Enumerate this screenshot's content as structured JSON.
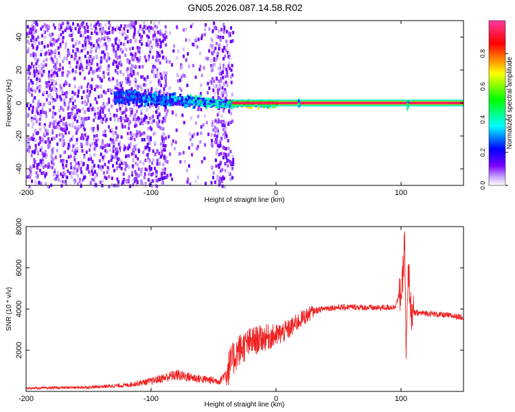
{
  "title": "GN05.2026.087.14.58.R02",
  "chart_data": [
    {
      "type": "heatmap",
      "xlabel": "Height of straight line (km)",
      "ylabel": "Frequency (Hz)",
      "xlim": [
        -200,
        150
      ],
      "ylim": [
        -50,
        50
      ],
      "x_ticks": [
        "-200",
        "-100",
        "0",
        "100"
      ],
      "y_ticks": [
        "40",
        "20",
        "0",
        "-20",
        "-40"
      ],
      "description_of_features": {
        "noise_region_x": [
          -200,
          -35
        ],
        "sparse_gap_x": [
          -88,
          -53
        ],
        "cluster_x": [
          -130,
          -35
        ],
        "cluster_center_freq": 5,
        "steady_line_freq": 0,
        "steady_line_x": [
          -35,
          150
        ],
        "spike_x": [
          18,
          105
        ]
      },
      "colorbar": {
        "label": "Normalized spectral amplitude",
        "range": [
          0,
          1
        ],
        "ticks": [
          "0.0",
          "0.2",
          "0.4",
          "0.6",
          "0.8"
        ],
        "colors": [
          "#ffffff",
          "#7a00ff",
          "#0000ff",
          "#00ffff",
          "#00ff00",
          "#ffff00",
          "#ff0000",
          "#ff3aa0"
        ]
      }
    },
    {
      "type": "line",
      "xlabel": "Height of straight line (km)",
      "ylabel": "SNR (10 * v/v)",
      "xlim": [
        -200,
        150
      ],
      "ylim": [
        0,
        8000
      ],
      "x_ticks": [
        "-200",
        "-100",
        "0",
        "100"
      ],
      "y_ticks": [
        "2000",
        "4000",
        "6000",
        "8000"
      ],
      "color": "#ee2222",
      "series_envelope": [
        [
          -200,
          150
        ],
        [
          -150,
          200
        ],
        [
          -120,
          300
        ],
        [
          -100,
          500
        ],
        [
          -80,
          800
        ],
        [
          -60,
          600
        ],
        [
          -45,
          500
        ],
        [
          -40,
          900
        ],
        [
          -35,
          1500
        ],
        [
          -30,
          2000
        ],
        [
          -20,
          2400
        ],
        [
          -10,
          2600
        ],
        [
          0,
          2700
        ],
        [
          10,
          3000
        ],
        [
          20,
          3500
        ],
        [
          30,
          3900
        ],
        [
          40,
          4050
        ],
        [
          60,
          4100
        ],
        [
          80,
          4050
        ],
        [
          95,
          4100
        ],
        [
          101,
          5000
        ],
        [
          103,
          7500
        ],
        [
          104,
          1500
        ],
        [
          106,
          6000
        ],
        [
          108,
          3800
        ],
        [
          120,
          3800
        ],
        [
          150,
          3600
        ]
      ]
    }
  ]
}
